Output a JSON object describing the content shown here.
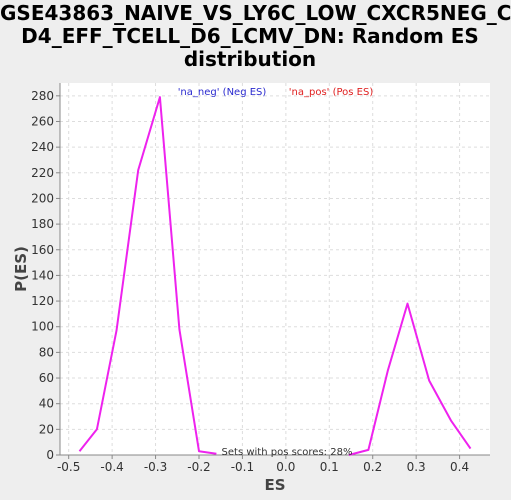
{
  "chart_data": {
    "type": "line",
    "title_lines": [
      "GSE43863_NAIVE_VS_LY6C_LOW_CXCR5NEG_C",
      "D4_EFF_TCELL_D6_LCMV_DN: Random ES",
      "distribution"
    ],
    "xlabel": "ES",
    "ylabel": "P(ES)",
    "xlim": [
      -0.52,
      0.47
    ],
    "ylim": [
      0,
      290
    ],
    "x_ticks": [
      -0.5,
      -0.4,
      -0.3,
      -0.2,
      -0.1,
      0.0,
      0.1,
      0.2,
      0.3,
      0.4
    ],
    "x_tick_labels": [
      "-0.5",
      "-0.4",
      "-0.3",
      "-0.2",
      "-0.1",
      "0.0",
      "0.1",
      "0.2",
      "0.3",
      "0.4"
    ],
    "y_ticks": [
      0,
      20,
      40,
      60,
      80,
      100,
      120,
      140,
      160,
      180,
      200,
      220,
      240,
      260,
      280
    ],
    "y_tick_labels": [
      "0",
      "20",
      "40",
      "60",
      "80",
      "100",
      "120",
      "140",
      "160",
      "180",
      "200",
      "220",
      "240",
      "260",
      "280"
    ],
    "grid": true,
    "legend": [
      {
        "label": "'na_neg' (Neg ES)",
        "color": "#2a2acf"
      },
      {
        "label": "'na_pos' (Pos ES)",
        "color": "#e02020"
      }
    ],
    "legend_placement": "top-center",
    "annotation": "Sets with pos scores: 28%",
    "series": [
      {
        "color": "#ee22ee",
        "segments": [
          {
            "x": [
              -0.475,
              -0.435,
              -0.39,
              -0.34,
              -0.29,
              -0.245,
              -0.2,
              -0.16
            ],
            "y": [
              3,
              20,
              97,
              222,
              279,
              98,
              3,
              1
            ]
          },
          {
            "x": [
              0.145,
              0.19,
              0.235,
              0.28,
              0.33,
              0.38,
              0.425
            ],
            "y": [
              0,
              4,
              66,
              118,
              58,
              27,
              5
            ]
          }
        ]
      }
    ]
  }
}
